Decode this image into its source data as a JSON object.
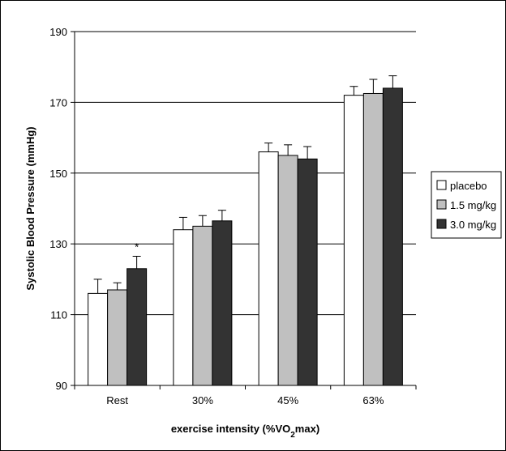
{
  "chart_data": {
    "type": "bar",
    "xlabel": "exercise intensity (%VO",
    "xlabel_sub": "2",
    "xlabel_tail": "max)",
    "ylabel": "Systolic Blood Pressure (mmHg)",
    "ylim": [
      90,
      190
    ],
    "yticks": [
      90,
      110,
      130,
      150,
      170,
      190
    ],
    "grid": true,
    "legend_position": "right",
    "categories": [
      "Rest",
      "30%",
      "45%",
      "63%"
    ],
    "series": [
      {
        "name": "placebo",
        "color": "#ffffff",
        "values": [
          116,
          134,
          156,
          172
        ],
        "errors": [
          4,
          3.5,
          2.5,
          2.5
        ]
      },
      {
        "name": "1.5 mg/kg",
        "color": "#c0c0c0",
        "values": [
          117,
          135,
          155,
          172.5
        ],
        "errors": [
          2,
          3,
          3,
          4
        ]
      },
      {
        "name": "3.0 mg/kg",
        "color": "#333333",
        "values": [
          123,
          136.5,
          154,
          174
        ],
        "errors": [
          3.5,
          3,
          3.5,
          3.5
        ]
      }
    ],
    "annotations": [
      {
        "category": "Rest",
        "series": "3.0 mg/kg",
        "text": "*"
      }
    ]
  }
}
